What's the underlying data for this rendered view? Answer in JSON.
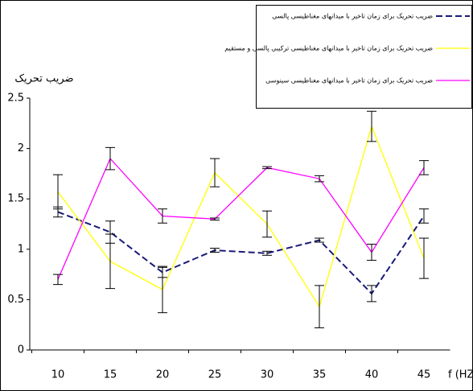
{
  "chart_data": {
    "type": "line",
    "y_axis_title": "ضریب تحریک",
    "x_axis_title": "f (HZ)",
    "categories": [
      "10",
      "15",
      "20",
      "25",
      "30",
      "35",
      "40",
      "45"
    ],
    "ylim": [
      0,
      2.5
    ],
    "yticks": [
      0,
      0.5,
      1,
      1.5,
      2,
      2.5
    ],
    "series": [
      {
        "name": "ضریب تحریک برای زمان تاخیر با میدانهای مغناطیسی پالسی",
        "color": "#1a1a7a",
        "dash": true,
        "values": [
          1.37,
          1.17,
          0.77,
          0.99,
          0.96,
          1.09,
          0.56,
          1.33
        ],
        "errors": [
          0.05,
          0.11,
          0.05,
          0.02,
          0.02,
          0.02,
          0.08,
          0.07
        ]
      },
      {
        "name": "ضریب تحریک برای زمان تاخیر با میدانهای مغناطیسی ترکیبی پالسی و مستقیم",
        "color": "#ffff00",
        "dash": false,
        "values": [
          1.57,
          0.88,
          0.6,
          1.76,
          1.25,
          0.43,
          2.22,
          0.91
        ],
        "errors": [
          0.17,
          0.27,
          0.23,
          0.14,
          0.13,
          0.21,
          0.15,
          0.2
        ]
      },
      {
        "name": "ضریب تحریک برای زمان تاخیر با میدانهای مغناطیسی سینوسی",
        "color": "#ff00ff",
        "dash": false,
        "values": [
          0.7,
          1.9,
          1.33,
          1.3,
          1.81,
          1.7,
          0.97,
          1.81
        ],
        "errors": [
          0.05,
          0.11,
          0.07,
          0.01,
          0.01,
          0.03,
          0.08,
          0.07
        ]
      }
    ]
  }
}
